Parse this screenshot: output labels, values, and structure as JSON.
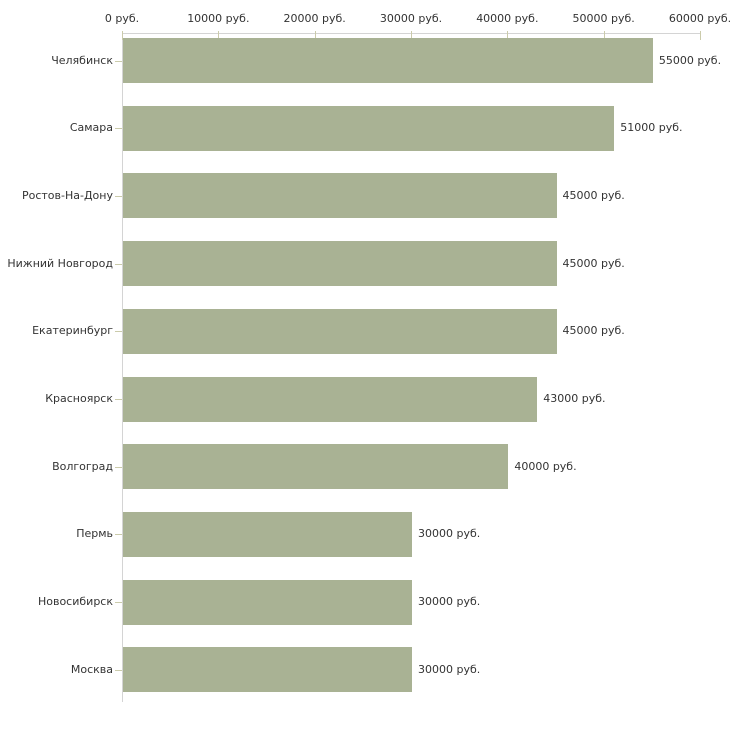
{
  "chart_data": {
    "type": "bar",
    "orientation": "horizontal",
    "title": "",
    "xlabel": "",
    "ylabel": "",
    "legend": "none",
    "grid": "off",
    "categories": [
      "Челябинск",
      "Самара",
      "Ростов-На-Дону",
      "Нижний Новгород",
      "Екатеринбург",
      "Красноярск",
      "Волгоград",
      "Пермь",
      "Новосибирск",
      "Москва"
    ],
    "values": [
      55000,
      51000,
      45000,
      45000,
      45000,
      43000,
      40000,
      30000,
      30000,
      30000
    ],
    "value_labels": [
      "55000 руб.",
      "51000 руб.",
      "45000 руб.",
      "45000 руб.",
      "45000 руб.",
      "43000 руб.",
      "40000 руб.",
      "30000 руб.",
      "30000 руб.",
      "30000 руб."
    ],
    "x_axis": {
      "position": "top",
      "min": 0,
      "max": 60000,
      "ticks": [
        0,
        10000,
        20000,
        30000,
        40000,
        50000,
        60000
      ],
      "tick_labels": [
        "0 руб.",
        "10000 руб.",
        "20000 руб.",
        "30000 руб.",
        "40000 руб.",
        "50000 руб.",
        "60000 руб."
      ]
    },
    "colors": {
      "bar": "#a9b294",
      "axis_line": "#d4d4d4",
      "tick": "#cbcbab",
      "text": "#333333",
      "background": "#ffffff"
    }
  }
}
